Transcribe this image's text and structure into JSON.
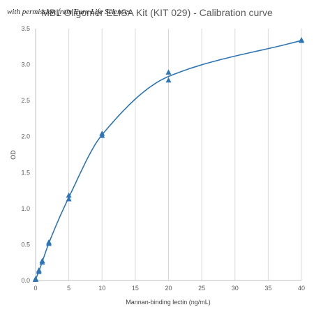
{
  "watermark": "with permission from Eurx Life Sciences",
  "chart_data": {
    "type": "scatter",
    "title": "MBL Oligomer ELISA Kit (KIT 029) - Calibration curve",
    "xlabel": "Mannan-binding lectin (ng/mL)",
    "ylabel": "OD",
    "xlim": [
      0,
      40
    ],
    "ylim": [
      0,
      3.5
    ],
    "x_ticks": [
      0,
      5,
      10,
      15,
      20,
      25,
      30,
      35,
      40
    ],
    "y_ticks": [
      "0.0",
      "0.5",
      "1.0",
      "1.5",
      "2.0",
      "2.5",
      "3.0",
      "3.5"
    ],
    "grid": "vertical",
    "legend": "none",
    "colors": {
      "series": "#2e75b6",
      "grid": "#d9d9d9",
      "text": "#595959"
    },
    "series": [
      {
        "x": [
          0,
          0,
          0.5,
          0.5,
          1,
          1,
          2,
          2,
          5,
          5,
          10,
          10,
          20,
          20,
          40,
          40
        ],
        "y": [
          0.02,
          0.01,
          0.12,
          0.14,
          0.25,
          0.27,
          0.51,
          0.53,
          1.13,
          1.18,
          2.01,
          2.04,
          2.78,
          2.89,
          3.33,
          3.34
        ],
        "marker": "triangle",
        "fit": "smooth curve"
      }
    ]
  }
}
